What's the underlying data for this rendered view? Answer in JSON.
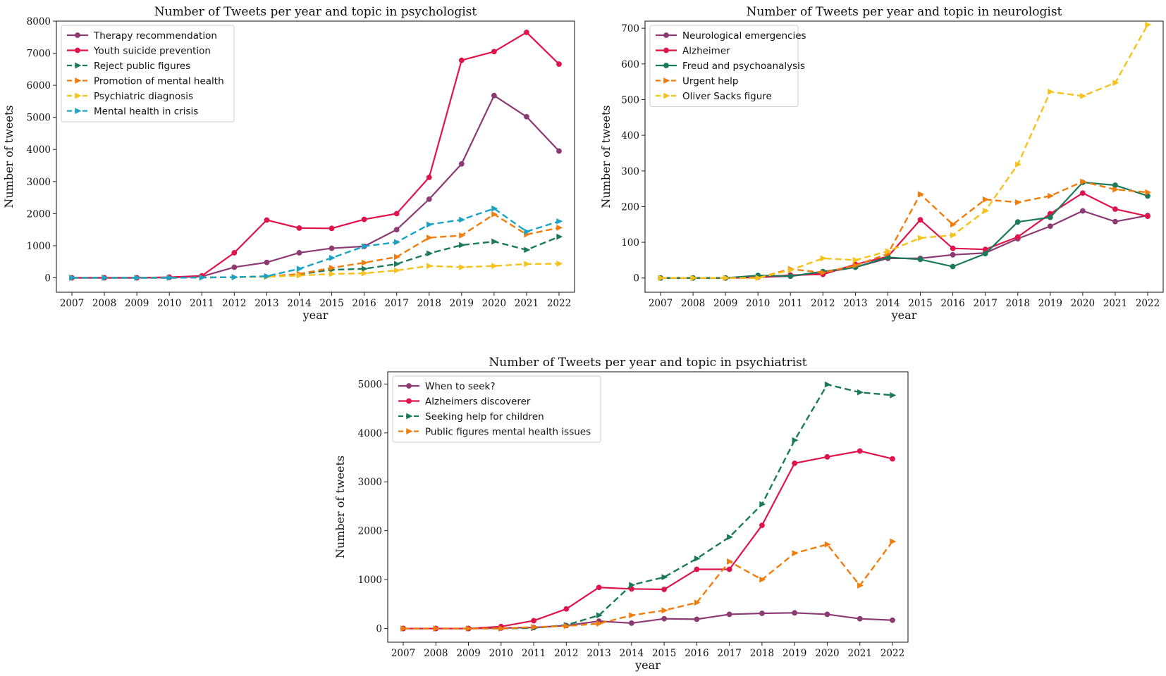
{
  "colors": {
    "purple": "#8b3a72",
    "red": "#e0144c",
    "green": "#1a7a5a",
    "orange": "#f07d0c",
    "yellow": "#f6c21c",
    "cyan": "#1aa3c4"
  },
  "chart_data": [
    {
      "type": "line",
      "title": "Number of Tweets per year and topic in psychologist",
      "xlabel": "year",
      "ylabel": "Number of tweets",
      "ylim": [
        -450,
        8000
      ],
      "yticks": [
        0,
        1000,
        2000,
        3000,
        4000,
        5000,
        6000,
        7000,
        8000
      ],
      "categories": [
        "2007",
        "2008",
        "2009",
        "2010",
        "2011",
        "2012",
        "2013",
        "2014",
        "2015",
        "2016",
        "2017",
        "2018",
        "2019",
        "2020",
        "2021",
        "2022"
      ],
      "legend_position": "top-left",
      "series": [
        {
          "name": "Therapy recommendation",
          "color": "purple",
          "dash": false,
          "marker": "circle",
          "values": [
            0,
            0,
            0,
            10,
            40,
            330,
            480,
            780,
            920,
            980,
            1500,
            2450,
            3550,
            5680,
            5020,
            3950
          ]
        },
        {
          "name": "Youth suicide prevention",
          "color": "red",
          "dash": false,
          "marker": "circle",
          "values": [
            0,
            0,
            0,
            20,
            60,
            780,
            1800,
            1550,
            1540,
            1820,
            2000,
            3130,
            6780,
            7050,
            7650,
            6660
          ]
        },
        {
          "name": "Reject public figures",
          "color": "green",
          "dash": true,
          "marker": "triangle",
          "values": [
            0,
            0,
            0,
            0,
            10,
            20,
            40,
            110,
            250,
            280,
            430,
            760,
            1020,
            1130,
            870,
            1280
          ]
        },
        {
          "name": "Promotion of mental health",
          "color": "orange",
          "dash": true,
          "marker": "triangle",
          "values": [
            0,
            0,
            0,
            0,
            10,
            20,
            40,
            120,
            310,
            470,
            650,
            1250,
            1320,
            1980,
            1350,
            1560
          ]
        },
        {
          "name": "Psychiatric diagnosis",
          "color": "yellow",
          "dash": true,
          "marker": "triangle",
          "values": [
            0,
            0,
            0,
            0,
            10,
            20,
            30,
            70,
            120,
            140,
            230,
            370,
            330,
            370,
            430,
            440
          ]
        },
        {
          "name": "Mental health in crisis",
          "color": "cyan",
          "dash": true,
          "marker": "triangle",
          "values": [
            0,
            0,
            0,
            0,
            10,
            20,
            50,
            280,
            620,
            980,
            1110,
            1660,
            1810,
            2160,
            1440,
            1760
          ]
        }
      ]
    },
    {
      "type": "line",
      "title": "Number of Tweets per year and topic in neurologist",
      "xlabel": "year",
      "ylabel": "Number of tweets",
      "ylim": [
        -40,
        720
      ],
      "yticks": [
        0,
        100,
        200,
        300,
        400,
        500,
        600,
        700
      ],
      "categories": [
        "2007",
        "2008",
        "2009",
        "2010",
        "2011",
        "2012",
        "2013",
        "2014",
        "2015",
        "2016",
        "2017",
        "2018",
        "2019",
        "2020",
        "2021",
        "2022"
      ],
      "legend_position": "top-left",
      "series": [
        {
          "name": "Neurological emergencies",
          "color": "purple",
          "dash": false,
          "marker": "circle",
          "values": [
            0,
            0,
            0,
            2,
            5,
            15,
            30,
            55,
            55,
            65,
            70,
            110,
            145,
            188,
            158,
            175
          ]
        },
        {
          "name": "Alzheimer",
          "color": "red",
          "dash": false,
          "marker": "circle",
          "values": [
            0,
            0,
            0,
            2,
            8,
            10,
            38,
            60,
            163,
            83,
            80,
            115,
            180,
            238,
            193,
            173
          ]
        },
        {
          "name": "Freud and psychoanalysis",
          "color": "green",
          "dash": false,
          "marker": "circle",
          "values": [
            0,
            0,
            0,
            7,
            5,
            18,
            30,
            58,
            52,
            32,
            68,
            157,
            170,
            268,
            260,
            230
          ]
        },
        {
          "name": "Urgent help",
          "color": "orange",
          "dash": true,
          "marker": "triangle",
          "values": [
            0,
            0,
            0,
            0,
            25,
            15,
            35,
            68,
            235,
            150,
            220,
            212,
            230,
            270,
            248,
            240
          ]
        },
        {
          "name": "Oliver Sacks figure",
          "color": "yellow",
          "dash": true,
          "marker": "triangle",
          "values": [
            0,
            0,
            0,
            0,
            22,
            55,
            50,
            75,
            112,
            120,
            188,
            318,
            522,
            510,
            547,
            710
          ]
        }
      ]
    },
    {
      "type": "line",
      "title": "Number of Tweets per year and topic in psychiatrist",
      "xlabel": "year",
      "ylabel": "Number of tweets",
      "ylim": [
        -280,
        5250
      ],
      "yticks": [
        0,
        1000,
        2000,
        3000,
        4000,
        5000
      ],
      "categories": [
        "2007",
        "2008",
        "2009",
        "2010",
        "2011",
        "2012",
        "2013",
        "2014",
        "2015",
        "2016",
        "2017",
        "2018",
        "2019",
        "2020",
        "2021",
        "2022"
      ],
      "legend_position": "top-left",
      "series": [
        {
          "name": "When to seek?",
          "color": "purple",
          "dash": false,
          "marker": "circle",
          "values": [
            0,
            0,
            0,
            10,
            20,
            60,
            150,
            110,
            200,
            190,
            290,
            310,
            320,
            290,
            200,
            170
          ]
        },
        {
          "name": "Alzheimers discoverer",
          "color": "red",
          "dash": false,
          "marker": "circle",
          "values": [
            0,
            0,
            0,
            40,
            160,
            400,
            840,
            810,
            800,
            1210,
            1210,
            2110,
            3380,
            3510,
            3630,
            3470
          ]
        },
        {
          "name": "Seeking help for children",
          "color": "green",
          "dash": true,
          "marker": "triangle",
          "values": [
            0,
            0,
            0,
            0,
            10,
            70,
            270,
            890,
            1050,
            1430,
            1870,
            2540,
            3850,
            4990,
            4830,
            4770
          ]
        },
        {
          "name": "Public figures mental health issues",
          "color": "orange",
          "dash": true,
          "marker": "triangle",
          "values": [
            0,
            0,
            0,
            0,
            30,
            50,
            100,
            270,
            370,
            530,
            1370,
            1000,
            1540,
            1720,
            880,
            1780
          ]
        }
      ]
    }
  ]
}
